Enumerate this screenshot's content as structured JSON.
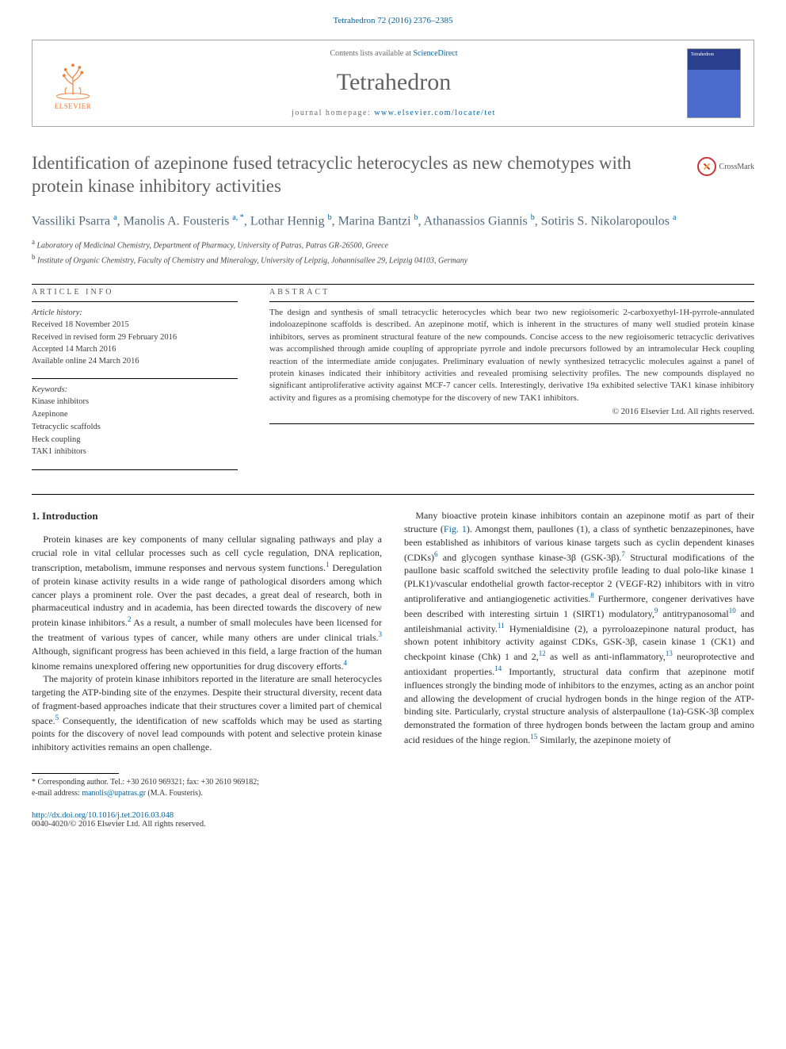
{
  "citation": "Tetrahedron 72 (2016) 2376–2385",
  "masthead": {
    "publisher": "ELSEVIER",
    "contents_prefix": "Contents lists available at ",
    "contents_link": "ScienceDirect",
    "journal": "Tetrahedron",
    "homepage_prefix": "journal homepage: ",
    "homepage_url": "www.elsevier.com/locate/tet",
    "cover_label": "Tetrahedron"
  },
  "title": "Identification of azepinone fused tetracyclic heterocycles as new chemotypes with protein kinase inhibitory activities",
  "crossmark_label": "CrossMark",
  "authors_html": "Vassiliki Psarra <sup>a</sup>, Manolis A. Fousteris <sup>a, *</sup>, Lothar Hennig <sup>b</sup>, Marina Bantzi <sup>b</sup>, Athanassios Giannis <sup>b</sup>, Sotiris S. Nikolaropoulos <sup>a</sup>",
  "affiliations": [
    "<sup>a</sup> Laboratory of Medicinal Chemistry, Department of Pharmacy, University of Patras, Patras GR-26500, Greece",
    "<sup>b</sup> Institute of Organic Chemistry, Faculty of Chemistry and Mineralogy, University of Leipzig, Johannisallee 29, Leipzig 04103, Germany"
  ],
  "article_info": {
    "heading": "ARTICLE INFO",
    "history_label": "Article history:",
    "history": [
      "Received 18 November 2015",
      "Received in revised form 29 February 2016",
      "Accepted 14 March 2016",
      "Available online 24 March 2016"
    ],
    "keywords_label": "Keywords:",
    "keywords": [
      "Kinase inhibitors",
      "Azepinone",
      "Tetracyclic scaffolds",
      "Heck coupling",
      "TAK1 inhibitors"
    ]
  },
  "abstract": {
    "heading": "ABSTRACT",
    "text": "The design and synthesis of small tetracyclic heterocycles which bear two new regioisomeric 2-carboxyethyl-1H-pyrrole-annulated indoloazepinone scaffolds is described. An azepinone motif, which is inherent in the structures of many well studied protein kinase inhibitors, serves as prominent structural feature of the new compounds. Concise access to the new regioisomeric tetracyclic derivatives was accomplished through amide coupling of appropriate pyrrole and indole precursors followed by an intramolecular Heck coupling reaction of the intermediate amide conjugates. Preliminary evaluation of newly synthesized tetracyclic molecules against a panel of protein kinases indicated their inhibitory activities and revealed promising selectivity profiles. The new compounds displayed no significant antiproliferative activity against MCF-7 cancer cells. Interestingly, derivative 19a exhibited selective TAK1 kinase inhibitory activity and figures as a promising chemotype for the discovery of new TAK1 inhibitors.",
    "copyright": "© 2016 Elsevier Ltd. All rights reserved."
  },
  "intro": {
    "heading": "1. Introduction",
    "p1": "Protein kinases are key components of many cellular signaling pathways and play a crucial role in vital cellular processes such as cell cycle regulation, DNA replication, transcription, metabolism, immune responses and nervous system functions.<sup>1</sup> Deregulation of protein kinase activity results in a wide range of pathological disorders among which cancer plays a prominent role. Over the past decades, a great deal of research, both in pharmaceutical industry and in academia, has been directed towards the discovery of new protein kinase inhibitors.<sup>2</sup> As a result, a number of small molecules have been licensed for the treatment of various types of cancer, while many others are under clinical trials.<sup>3</sup> Although, significant progress has been achieved in this field, a large fraction of the human kinome remains unexplored offering new opportunities for drug discovery efforts.<sup>4</sup>",
    "p2": "The majority of protein kinase inhibitors reported in the literature are small heterocycles targeting the ATP-binding site of the enzymes. Despite their structural diversity, recent data of fragment-based approaches indicate that their structures cover a limited part of chemical space.<sup>5</sup> Consequently, the identification of new scaffolds which may be used as starting points for the discovery of novel lead compounds with potent and selective protein kinase inhibitory activities remains an open challenge.",
    "p3": "Many bioactive protein kinase inhibitors contain an azepinone motif as part of their structure (<a>Fig. 1</a>). Amongst them, paullones (1), a class of synthetic benzazepinones, have been established as inhibitors of various kinase targets such as cyclin dependent kinases (CDKs)<sup>6</sup> and glycogen synthase kinase-3β (GSK-3β).<sup>7</sup> Structural modifications of the paullone basic scaffold switched the selectivity profile leading to dual polo-like kinase 1 (PLK1)/vascular endothelial growth factor-receptor 2 (VEGF-R2) inhibitors with in vitro antiproliferative and antiangiogenetic activities.<sup>8</sup> Furthermore, congener derivatives have been described with interesting sirtuin 1 (SIRT1) modulatory,<sup>9</sup> antitrypanosomal<sup>10</sup> and antileishmanial activity.<sup>11</sup> Hymenialdisine (2), a pyrroloazepinone natural product, has shown potent inhibitory activity against CDKs, GSK-3β, casein kinase 1 (CK1) and checkpoint kinase (Chk) 1 and 2,<sup>12</sup> as well as anti-inflammatory,<sup>13</sup> neuroprotective and antioxidant properties.<sup>14</sup> Importantly, structural data confirm that azepinone motif influences strongly the binding mode of inhibitors to the enzymes, acting as an anchor point and allowing the development of crucial hydrogen bonds in the hinge region of the ATP-binding site. Particularly, crystal structure analysis of alsterpaullone (1a)-GSK-3β complex demonstrated the formation of three hydrogen bonds between the lactam group and amino acid residues of the hinge region.<sup>15</sup> Similarly, the azepinone moiety of"
  },
  "footnote": {
    "line1": "* Corresponding author. Tel.: +30 2610 969321; fax: +30 2610 969182;",
    "line2_prefix": "e-mail address: ",
    "email": "manolis@upatras.gr",
    "line2_suffix": " (M.A. Fousteris)."
  },
  "doi": {
    "url": "http://dx.doi.org/10.1016/j.tet.2016.03.048",
    "issn_line": "0040-4020/© 2016 Elsevier Ltd. All rights reserved."
  },
  "colors": {
    "link": "#0064a6",
    "elsevier_orange": "#ef7b2f",
    "title_gray": "#5f5f5f",
    "author_color": "#53697d"
  }
}
